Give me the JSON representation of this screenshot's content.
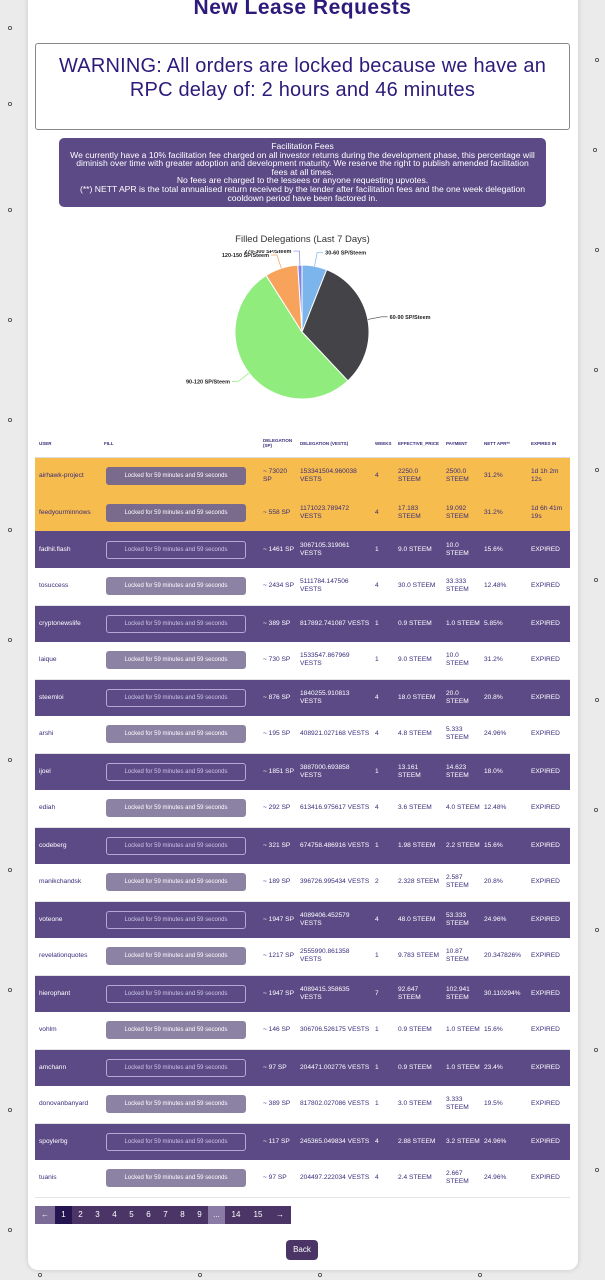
{
  "page": {
    "title": "New Lease Requests",
    "warning": "WARNING: All orders are locked because we have an RPC delay of: 2 hours and 46 minutes",
    "back_label": "Back"
  },
  "fees": {
    "heading": "Facilitation Fees",
    "line1": "We currently have a 10% facilitation fee charged on all investor returns during the development phase, this percentage will diminish over time with greater adoption and development maturity. We reserve the right to publish amended facilitation fees at all times.",
    "line2": "No fees are charged to the lessees or anyone requesting upvotes.",
    "line3": "(**) NETT APR is the total annualised return received by the lender after facilitation fees and the one week delegation cooldown period have been factored in."
  },
  "chart_data": {
    "type": "pie",
    "title": "Filled Delegations (Last 7 Days)",
    "categories": [
      "30-60 SP/Steem",
      "60-90 SP/Steem",
      "90-120 SP/Steem",
      "120-150 SP/Steem",
      "270-300 SP/Steem"
    ],
    "values": [
      6,
      32,
      53,
      8,
      1
    ],
    "colors": [
      "#7cb5ec",
      "#434348",
      "#90ed7d",
      "#f7a35c",
      "#8085e9"
    ]
  },
  "table": {
    "headers": [
      "USER",
      "FILL",
      "DELEGATION (SP)",
      "DELEGATION (VESTS)",
      "WEEKS",
      "EFFECTIVE_PRICE",
      "PAYMENT",
      "NETT APR**",
      "EXPIRES IN"
    ],
    "lock_text": "Locked for 59 minutes and 59 seconds",
    "rows": [
      {
        "style": "orange",
        "user": "airhawk-project",
        "sp": "~ 73020 SP",
        "vests": "153341504.960038 VESTS",
        "weeks": "4",
        "price": "2250.0 STEEM",
        "payment": "2500.0 STEEM",
        "apr": "31.2%",
        "expires": "1d 1h 2m 12s"
      },
      {
        "style": "orange",
        "user": "feedyourminnows",
        "sp": "~ 558 SP",
        "vests": "1171023.789472 VESTS",
        "weeks": "4",
        "price": "17.183 STEEM",
        "payment": "19.092 STEEM",
        "apr": "31.2%",
        "expires": "1d 6h 41m 19s"
      },
      {
        "style": "purple",
        "user": "fadhil.flash",
        "sp": "~ 1461 SP",
        "vests": "3067105.319061 VESTS",
        "weeks": "1",
        "price": "9.0 STEEM",
        "payment": "10.0 STEEM",
        "apr": "15.6%",
        "expires": "EXPIRED"
      },
      {
        "style": "white",
        "user": "tosuccess",
        "sp": "~ 2434 SP",
        "vests": "5111784.147506 VESTS",
        "weeks": "4",
        "price": "30.0 STEEM",
        "payment": "33.333 STEEM",
        "apr": "12.48%",
        "expires": "EXPIRED"
      },
      {
        "style": "purple",
        "user": "cryptonewslife",
        "sp": "~ 389 SP",
        "vests": "817892.741087 VESTS",
        "weeks": "1",
        "price": "0.9 STEEM",
        "payment": "1.0 STEEM",
        "apr": "5.85%",
        "expires": "EXPIRED"
      },
      {
        "style": "white",
        "user": "laique",
        "sp": "~ 730 SP",
        "vests": "1533547.867969 VESTS",
        "weeks": "1",
        "price": "9.0 STEEM",
        "payment": "10.0 STEEM",
        "apr": "31.2%",
        "expires": "EXPIRED"
      },
      {
        "style": "purple",
        "user": "steemloi",
        "sp": "~ 876 SP",
        "vests": "1840255.910813 VESTS",
        "weeks": "4",
        "price": "18.0 STEEM",
        "payment": "20.0 STEEM",
        "apr": "20.8%",
        "expires": "EXPIRED"
      },
      {
        "style": "white",
        "user": "arshi",
        "sp": "~ 195 SP",
        "vests": "408921.027168 VESTS",
        "weeks": "4",
        "price": "4.8 STEEM",
        "payment": "5.333 STEEM",
        "apr": "24.96%",
        "expires": "EXPIRED"
      },
      {
        "style": "purple",
        "user": "ijoel",
        "sp": "~ 1851 SP",
        "vests": "3887000.693858 VESTS",
        "weeks": "1",
        "price": "13.161 STEEM",
        "payment": "14.623 STEEM",
        "apr": "18.0%",
        "expires": "EXPIRED"
      },
      {
        "style": "white",
        "user": "ediah",
        "sp": "~ 292 SP",
        "vests": "613416.975617 VESTS",
        "weeks": "4",
        "price": "3.6 STEEM",
        "payment": "4.0 STEEM",
        "apr": "12.48%",
        "expires": "EXPIRED"
      },
      {
        "style": "purple",
        "user": "codeberg",
        "sp": "~ 321 SP",
        "vests": "674758.486916 VESTS",
        "weeks": "1",
        "price": "1.98 STEEM",
        "payment": "2.2 STEEM",
        "apr": "15.6%",
        "expires": "EXPIRED"
      },
      {
        "style": "white",
        "user": "manikchandsk",
        "sp": "~ 189 SP",
        "vests": "396726.995434 VESTS",
        "weeks": "2",
        "price": "2.328 STEEM",
        "payment": "2.587 STEEM",
        "apr": "20.8%",
        "expires": "EXPIRED"
      },
      {
        "style": "purple",
        "user": "voteone",
        "sp": "~ 1947 SP",
        "vests": "4089406.452579 VESTS",
        "weeks": "4",
        "price": "48.0 STEEM",
        "payment": "53.333 STEEM",
        "apr": "24.96%",
        "expires": "EXPIRED"
      },
      {
        "style": "white",
        "user": "revelationquotes",
        "sp": "~ 1217 SP",
        "vests": "2555990.861358 VESTS",
        "weeks": "1",
        "price": "9.783 STEEM",
        "payment": "10.87 STEEM",
        "apr": "20.347826%",
        "expires": "EXPIRED"
      },
      {
        "style": "purple",
        "user": "hierophant",
        "sp": "~ 1947 SP",
        "vests": "4089415.358635 VESTS",
        "weeks": "7",
        "price": "92.647 STEEM",
        "payment": "102.941 STEEM",
        "apr": "30.110294%",
        "expires": "EXPIRED"
      },
      {
        "style": "white",
        "user": "vohlm",
        "sp": "~ 146 SP",
        "vests": "306706.526175 VESTS",
        "weeks": "1",
        "price": "0.9 STEEM",
        "payment": "1.0 STEEM",
        "apr": "15.6%",
        "expires": "EXPIRED"
      },
      {
        "style": "purple",
        "user": "amchann",
        "sp": "~ 97 SP",
        "vests": "204471.002776 VESTS",
        "weeks": "1",
        "price": "0.9 STEEM",
        "payment": "1.0 STEEM",
        "apr": "23.4%",
        "expires": "EXPIRED"
      },
      {
        "style": "white",
        "user": "donovanbanyard",
        "sp": "~ 389 SP",
        "vests": "817802.027086 VESTS",
        "weeks": "1",
        "price": "3.0 STEEM",
        "payment": "3.333 STEEM",
        "apr": "19.5%",
        "expires": "EXPIRED"
      },
      {
        "style": "purple",
        "user": "spoylerbg",
        "sp": "~ 117 SP",
        "vests": "245365.049834 VESTS",
        "weeks": "4",
        "price": "2.88 STEEM",
        "payment": "3.2 STEEM",
        "apr": "24.96%",
        "expires": "EXPIRED"
      },
      {
        "style": "white",
        "user": "tuanis",
        "sp": "~ 97 SP",
        "vests": "204497.222034 VESTS",
        "weeks": "4",
        "price": "2.4 STEEM",
        "payment": "2.667 STEEM",
        "apr": "24.96%",
        "expires": "EXPIRED"
      }
    ]
  },
  "pager": {
    "prev": "←",
    "pages": [
      "1",
      "2",
      "3",
      "4",
      "5",
      "6",
      "7",
      "8",
      "9"
    ],
    "ellipsis": "...",
    "tail": [
      "14",
      "15"
    ],
    "next": "→",
    "active": "1"
  }
}
